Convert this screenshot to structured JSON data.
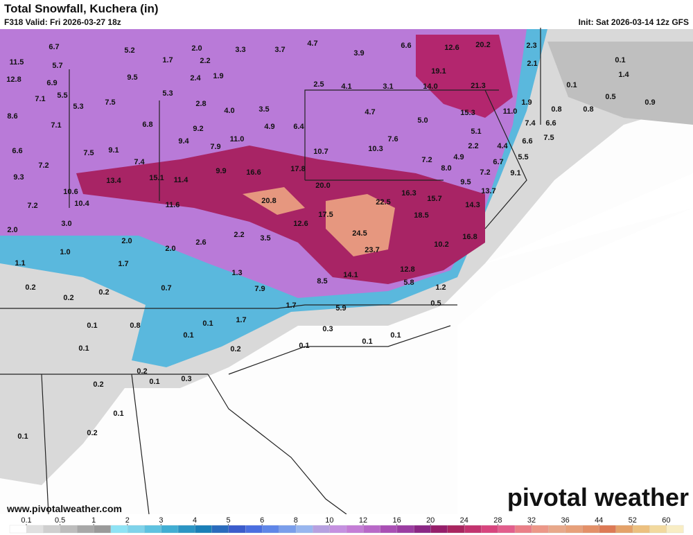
{
  "header": {
    "title": "Total Snowfall, Kuchera (in)",
    "valid": "F318 Valid: Fri 2026-03-27 18z",
    "init": "Init: Sat 2026-03-14 12z GFS"
  },
  "footer": {
    "logo": "pivotal weather",
    "url": "www.pivotalweather.com"
  },
  "colorbar": {
    "ticks": [
      0.1,
      0.5,
      1,
      2,
      3,
      4,
      5,
      6,
      8,
      10,
      12,
      16,
      20,
      24,
      28,
      32,
      36,
      44,
      52,
      60
    ],
    "colors": [
      "#ffffff",
      "#e0e0e0",
      "#cfcfcf",
      "#bdbdbd",
      "#a8a8a8",
      "#9a9a9a",
      "#8fe3f5",
      "#7fd3ea",
      "#5ec2e0",
      "#41aed3",
      "#2b95c4",
      "#1a7fb7",
      "#2a6bbd",
      "#3b5ccc",
      "#4a6ee0",
      "#5f86e8",
      "#7a9eeb",
      "#98b6ef",
      "#b6a0e0",
      "#c590e0",
      "#c47dd6",
      "#b868c8",
      "#a94fb4",
      "#9b3da2",
      "#8b2785",
      "#961e6a",
      "#a9255f",
      "#c2336e",
      "#d7457e",
      "#e25e8c",
      "#ea7f88",
      "#ec9788",
      "#e8a88a",
      "#e7a07a",
      "#e39068",
      "#dd7a55",
      "#e4a269",
      "#ecc07f",
      "#f2d99e",
      "#f8edc4"
    ]
  },
  "map_labels": [
    6.7,
    5.2,
    {
      "value": 2,
      "label": "2.0"
    },
    3.3,
    3.7,
    4.7,
    3.9,
    6.6,
    12.6,
    20.2,
    2.3,
    11.5,
    5.7,
    1.7,
    2.2,
    2.1,
    0.1,
    12.8,
    6.9,
    9.5,
    2.4,
    1.9,
    19.1,
    1.4,
    7.1,
    5.5,
    5.3,
    2.5,
    4.1,
    3.1,
    {
      "value": 14,
      "label": "14.0"
    },
    21.3,
    0.1,
    5.3,
    7.5,
    2.8,
    {
      "value": 4,
      "label": "4.0"
    },
    3.5,
    4.7,
    15.3,
    {
      "value": 11,
      "label": "11.0"
    },
    1.9,
    0.5,
    0.9,
    8.6,
    0.8,
    0.8,
    7.1,
    6.8,
    9.2,
    4.9,
    6.4,
    {
      "value": 5,
      "label": "5.0"
    },
    5.1,
    7.4,
    6.6,
    9.4,
    7.9,
    {
      "value": 11,
      "label": "11.0"
    },
    7.6,
    7.5,
    6.6,
    6.6,
    7.5,
    9.1,
    10.7,
    10.3,
    7.2,
    2.2,
    4.4,
    4.9,
    5.5,
    7.2,
    7.4,
    9.9,
    16.6,
    17.8,
    {
      "value": 8,
      "label": "8.0"
    },
    6.7,
    9.1,
    9.3,
    10.6,
    13.4,
    15.1,
    11.4,
    {
      "value": 20,
      "label": "20.0"
    },
    16.3,
    7.2,
    9.5,
    13.7,
    7.2,
    10.4,
    11.6,
    20.8,
    22.5,
    15.7,
    14.3,
    17.5,
    18.5,
    {
      "value": 2,
      "label": "2.0"
    },
    {
      "value": 3,
      "label": "3.0"
    },
    12.6,
    24.5,
    2.2,
    {
      "value": 2,
      "label": "2.0"
    },
    2.6,
    3.5,
    16.8,
    {
      "value": 1,
      "label": "1.0"
    },
    {
      "value": 2,
      "label": "2.0"
    },
    23.7,
    10.2,
    1.1,
    1.7,
    1.3,
    12.8,
    14.1,
    0.2,
    8.5,
    5.8,
    0.7,
    7.9,
    1.2,
    0.2,
    0.2,
    1.7,
    5.9,
    0.5,
    1.7,
    0.1,
    0.8,
    0.1,
    0.3,
    0.1,
    0.1,
    0.1,
    0.1,
    0.1,
    0.2,
    0.2,
    0.1,
    0.3,
    0.2,
    0.1,
    0.2,
    0.1
  ]
}
